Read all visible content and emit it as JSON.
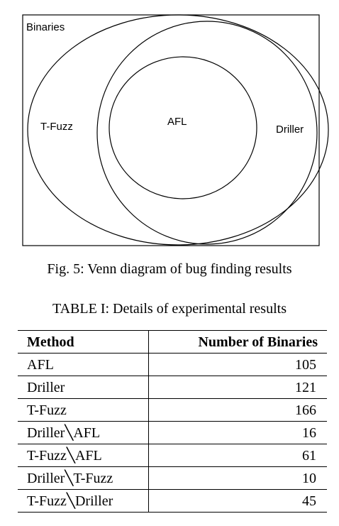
{
  "figure": {
    "venn_labels": {
      "universe": "Binaries",
      "left": "T-Fuzz",
      "center": "AFL",
      "right": "Driller"
    },
    "caption": "Fig. 5: Venn diagram of bug finding results"
  },
  "table": {
    "caption": "TABLE I: Details of experimental results",
    "headers": [
      "Method",
      "Number of Binaries"
    ],
    "rows": [
      {
        "method": "AFL",
        "count": "105"
      },
      {
        "method": "Driller",
        "count": "121"
      },
      {
        "method": "T-Fuzz",
        "count": "166"
      },
      {
        "method": "Driller╲AFL",
        "count": "16"
      },
      {
        "method": "T-Fuzz╲AFL",
        "count": "61"
      },
      {
        "method": "Driller╲T-Fuzz",
        "count": "10"
      },
      {
        "method": "T-Fuzz╲Driller",
        "count": "45"
      }
    ]
  }
}
